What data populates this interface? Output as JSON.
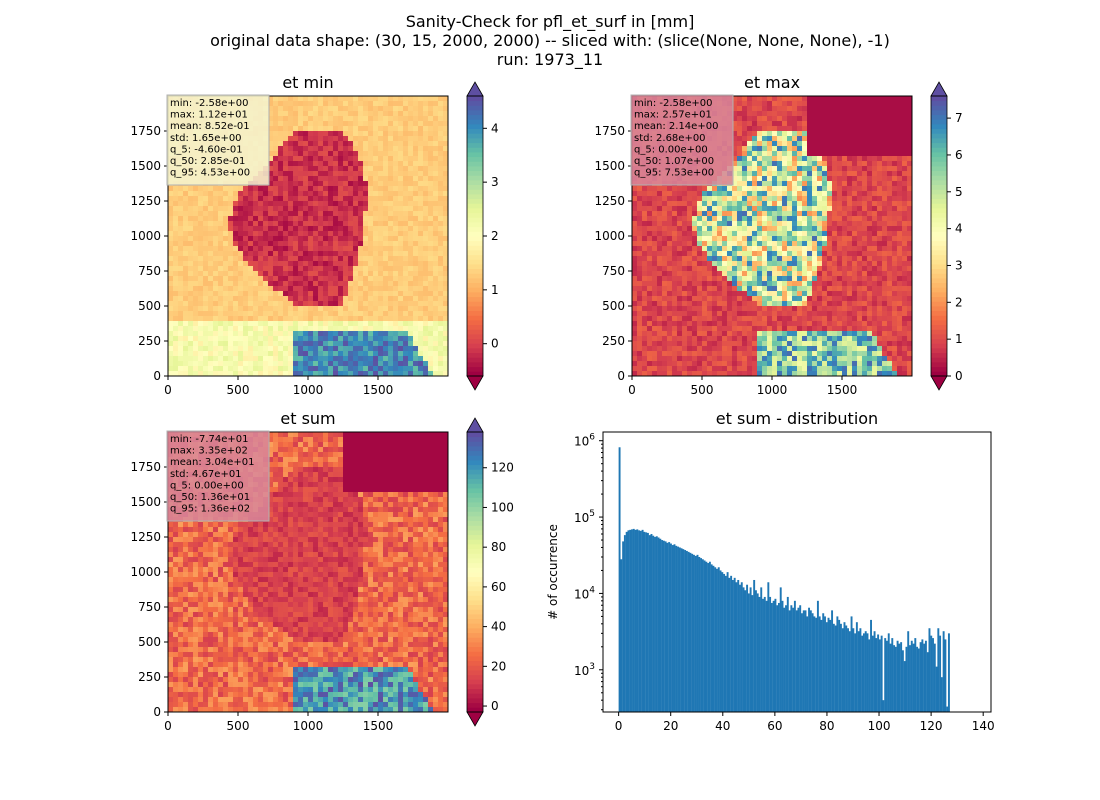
{
  "figure": {
    "title_lines": [
      "Sanity-Check for pfl_et_surf in [mm]",
      "original data shape: (30, 15, 2000, 2000) -- sliced with: (slice(None, None, None), -1)",
      "run: 1973_11"
    ]
  },
  "colors": {
    "colormap": "Spectral",
    "hist_bar": "#1f77b4",
    "stats_box_light": "#f5f5d0",
    "stats_box_pink": "#d8879a"
  },
  "chart_data": [
    {
      "type": "heatmap",
      "title": "et min",
      "colormap": "Spectral",
      "xlim": [
        0,
        2000
      ],
      "ylim": [
        0,
        2000
      ],
      "xticks": [
        0,
        500,
        1000,
        1500
      ],
      "yticks": [
        0,
        250,
        500,
        750,
        1000,
        1250,
        1500,
        1750
      ],
      "colorbar": {
        "range": [
          -0.6,
          4.6
        ],
        "ticks": [
          0,
          1,
          2,
          3,
          4
        ],
        "extend": "both"
      },
      "stats": [
        "min: -2.58e+00",
        "max: 1.12e+01",
        "mean: 8.52e-01",
        "std: 1.65e+00",
        "q_5: -4.60e-01",
        "q_50: 2.85e-01",
        "q_95: 4.53e+00"
      ]
    },
    {
      "type": "heatmap",
      "title": "et max",
      "colormap": "Spectral",
      "xlim": [
        0,
        2000
      ],
      "ylim": [
        0,
        2000
      ],
      "xticks": [
        0,
        500,
        1000,
        1500
      ],
      "yticks": [
        0,
        250,
        500,
        750,
        1000,
        1250,
        1500,
        1750
      ],
      "colorbar": {
        "range": [
          0,
          7.6
        ],
        "ticks": [
          0,
          1,
          2,
          3,
          4,
          5,
          6,
          7
        ],
        "extend": "both"
      },
      "stats": [
        "min: -2.58e+00",
        "max: 2.57e+01",
        "mean: 2.14e+00",
        "std: 2.68e+00",
        "q_5: 0.00e+00",
        "q_50: 1.07e+00",
        "q_95: 7.53e+00"
      ]
    },
    {
      "type": "heatmap",
      "title": "et sum",
      "colormap": "Spectral",
      "xlim": [
        0,
        2000
      ],
      "ylim": [
        0,
        2000
      ],
      "xticks": [
        0,
        500,
        1000,
        1500
      ],
      "yticks": [
        0,
        250,
        500,
        750,
        1000,
        1250,
        1500,
        1750
      ],
      "colorbar": {
        "range": [
          -3,
          138
        ],
        "ticks": [
          0,
          20,
          40,
          60,
          80,
          100,
          120
        ],
        "extend": "both"
      },
      "stats": [
        "min: -7.74e+01",
        "max: 3.35e+02",
        "mean: 3.04e+01",
        "std: 4.67e+01",
        "q_5: 0.00e+00",
        "q_50: 1.36e+01",
        "q_95: 1.36e+02"
      ]
    },
    {
      "type": "bar",
      "title": "et sum - distribution",
      "xlabel": "",
      "ylabel": "# of occurrence",
      "yscale": "log",
      "xlim": [
        -6,
        143
      ],
      "ylim": [
        280,
        1300000
      ],
      "xticks": [
        0,
        20,
        40,
        60,
        80,
        100,
        120,
        140
      ],
      "ytick_exponents": [
        3,
        4,
        5,
        6
      ],
      "bin_width": 0.68,
      "first_bin": 0,
      "counts": [
        820000,
        28000,
        48000,
        58000,
        64000,
        67000,
        68000,
        69000,
        70000,
        68000,
        69000,
        67000,
        66000,
        68000,
        64000,
        63000,
        62000,
        58000,
        60000,
        57000,
        55000,
        56000,
        54000,
        52000,
        50000,
        49000,
        48000,
        46000,
        47000,
        45000,
        43000,
        44000,
        42000,
        41000,
        40000,
        39000,
        38000,
        37000,
        36000,
        35000,
        34000,
        33000,
        32000,
        31000,
        32000,
        30000,
        29000,
        28000,
        27000,
        26000,
        25000,
        26000,
        24000,
        23000,
        22000,
        21000,
        22000,
        20000,
        19000,
        18000,
        17000,
        19000,
        16000,
        17000,
        15000,
        16000,
        14000,
        15000,
        13000,
        14000,
        12000,
        11000,
        13000,
        10000,
        12000,
        9500,
        15000,
        11000,
        10000,
        9000,
        12000,
        8500,
        9000,
        8000,
        14000,
        9000,
        7500,
        8000,
        8500,
        7000,
        7500,
        12000,
        8000,
        6500,
        7000,
        9000,
        6000,
        7000,
        6500,
        8000,
        6000,
        6500,
        7000,
        5500,
        6000,
        6000,
        5000,
        6500,
        6000,
        5500,
        5000,
        4800,
        8000,
        5000,
        4500,
        5500,
        5000,
        4200,
        4800,
        4500,
        6000,
        4000,
        3800,
        5000,
        4500,
        4000,
        3500,
        4200,
        3800,
        3500,
        3200,
        5000,
        3500,
        3000,
        4200,
        3200,
        3500,
        2800,
        3000,
        3200,
        3000,
        2500,
        4500,
        2800,
        3200,
        2600,
        2900,
        2500,
        2800,
        400,
        2600,
        2400,
        3000,
        2200,
        2600,
        2100,
        2000,
        2400,
        2200,
        2300,
        1800,
        1300,
        2000,
        3200,
        2100,
        2400,
        2200,
        2600,
        2000,
        1900,
        2300,
        2500,
        2200,
        2400,
        1700,
        3500,
        2800,
        2600,
        2200,
        1100,
        3500,
        2800,
        800,
        3200,
        2500,
        330,
        3000
      ]
    }
  ]
}
